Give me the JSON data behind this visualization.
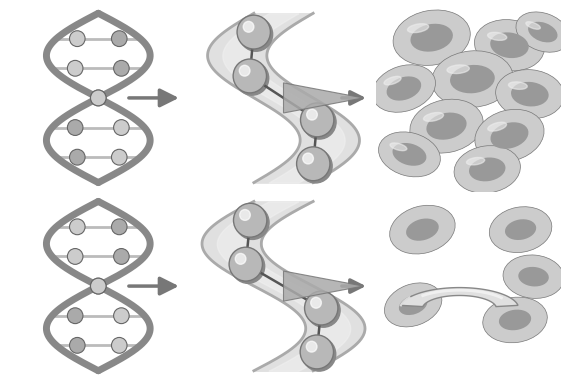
{
  "figsize": [
    5.67,
    3.84
  ],
  "dpi": 100,
  "bg_color": "#ffffff",
  "border_color": "#000000",
  "border_lw": 1.5,
  "strand_color": "#888888",
  "arrow_color": "#777777",
  "sphere_color": "#b8b8b8",
  "fiber_color": "#d8d8d8",
  "rbc_bg": "#222222",
  "rbc_color": "#cccccc",
  "rbc_dark": "#999999"
}
